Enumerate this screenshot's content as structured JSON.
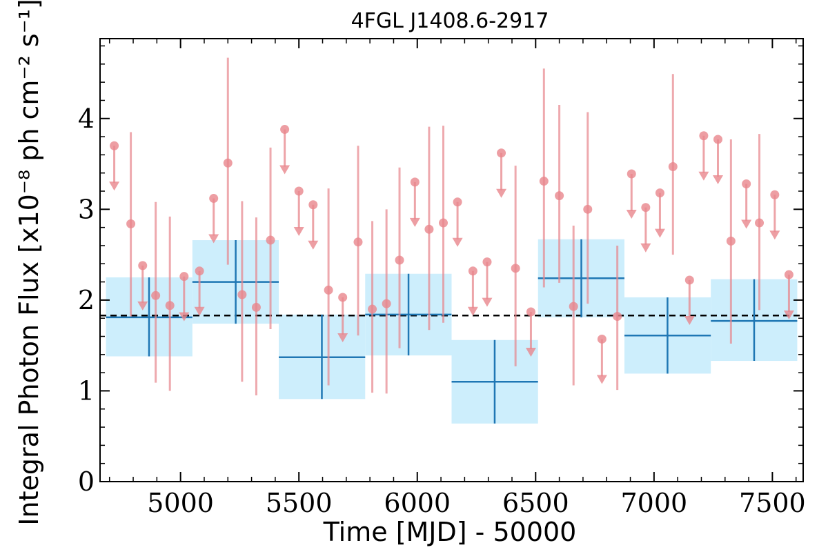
{
  "chart_data": {
    "type": "scatter",
    "title": "4FGL J1408.6-2917",
    "xlabel": "Time [MJD] - 50000",
    "ylabel": "Integral Photon Flux [x10⁻⁸ ph cm⁻² s⁻¹]",
    "xlim": [
      4660,
      7630
    ],
    "ylim": [
      0,
      4.88
    ],
    "x_ticks": [
      5000,
      5500,
      6000,
      6500,
      7000,
      7500
    ],
    "y_ticks": [
      0,
      1,
      2,
      3,
      4
    ],
    "x_tick_labels": [
      "5000",
      "5500",
      "6000",
      "6500",
      "7000",
      "7500"
    ],
    "y_tick_labels": [
      "0",
      "1",
      "2",
      "3",
      "4"
    ],
    "reference_line": {
      "y": 1.83,
      "style": "dashed"
    },
    "colors": {
      "short_bins": "#e8868c",
      "long_bins": "#1f77b4",
      "long_band": "#cdeefc",
      "reference": "#000000"
    },
    "series": [
      {
        "marker": "circle",
        "points": [
          {
            "x": 4790,
            "y": 2.84,
            "ylo": 1.82,
            "yhi": 3.85
          },
          {
            "x": 4895,
            "y": 2.05,
            "ylo": 1.09,
            "yhi": 3.08
          },
          {
            "x": 4955,
            "y": 1.94,
            "ylo": 1.0,
            "yhi": 2.92
          },
          {
            "x": 5200,
            "y": 3.51,
            "ylo": 2.39,
            "yhi": 4.67
          },
          {
            "x": 5260,
            "y": 2.06,
            "ylo": 1.1,
            "yhi": 3.09
          },
          {
            "x": 5320,
            "y": 1.92,
            "ylo": 0.95,
            "yhi": 2.91
          },
          {
            "x": 5380,
            "y": 2.66,
            "ylo": 1.68,
            "yhi": 3.68
          },
          {
            "x": 5625,
            "y": 2.11,
            "ylo": 1.06,
            "yhi": 3.23
          },
          {
            "x": 5750,
            "y": 2.64,
            "ylo": 1.61,
            "yhi": 3.7
          },
          {
            "x": 5810,
            "y": 1.9,
            "ylo": 0.98,
            "yhi": 2.87
          },
          {
            "x": 5870,
            "y": 1.96,
            "ylo": 0.97,
            "yhi": 3.0
          },
          {
            "x": 5925,
            "y": 2.44,
            "ylo": 1.47,
            "yhi": 3.46
          },
          {
            "x": 6050,
            "y": 2.78,
            "ylo": 1.67,
            "yhi": 3.91
          },
          {
            "x": 6110,
            "y": 2.85,
            "ylo": 1.75,
            "yhi": 3.92
          },
          {
            "x": 6415,
            "y": 2.35,
            "ylo": 1.27,
            "yhi": 3.48
          },
          {
            "x": 6535,
            "y": 3.31,
            "ylo": 2.14,
            "yhi": 4.55
          },
          {
            "x": 6600,
            "y": 3.15,
            "ylo": 2.19,
            "yhi": 4.15
          },
          {
            "x": 6660,
            "y": 1.93,
            "ylo": 1.06,
            "yhi": 2.82
          },
          {
            "x": 6720,
            "y": 3.0,
            "ylo": 1.96,
            "yhi": 4.07
          },
          {
            "x": 6845,
            "y": 1.82,
            "ylo": 1.01,
            "yhi": 2.6
          },
          {
            "x": 7080,
            "y": 3.47,
            "ylo": 2.5,
            "yhi": 4.49
          },
          {
            "x": 7325,
            "y": 2.65,
            "ylo": 1.52,
            "yhi": 3.77
          },
          {
            "x": 7445,
            "y": 2.85,
            "ylo": 1.89,
            "yhi": 3.83
          }
        ]
      },
      {
        "marker": "upper-limit",
        "points": [
          {
            "x": 4720,
            "y": 3.7
          },
          {
            "x": 4840,
            "y": 2.38
          },
          {
            "x": 5015,
            "y": 2.26
          },
          {
            "x": 5080,
            "y": 2.32
          },
          {
            "x": 5140,
            "y": 3.12
          },
          {
            "x": 5440,
            "y": 3.88
          },
          {
            "x": 5500,
            "y": 3.2
          },
          {
            "x": 5560,
            "y": 3.05
          },
          {
            "x": 5685,
            "y": 2.03
          },
          {
            "x": 5990,
            "y": 3.3
          },
          {
            "x": 6170,
            "y": 3.08
          },
          {
            "x": 6235,
            "y": 2.32
          },
          {
            "x": 6295,
            "y": 2.42
          },
          {
            "x": 6355,
            "y": 3.62
          },
          {
            "x": 6480,
            "y": 1.87
          },
          {
            "x": 6780,
            "y": 1.57
          },
          {
            "x": 6905,
            "y": 3.39
          },
          {
            "x": 6965,
            "y": 3.02
          },
          {
            "x": 7025,
            "y": 3.18
          },
          {
            "x": 7150,
            "y": 2.22
          },
          {
            "x": 7210,
            "y": 3.81
          },
          {
            "x": 7270,
            "y": 3.77
          },
          {
            "x": 7390,
            "y": 3.28
          },
          {
            "x": 7510,
            "y": 3.16
          },
          {
            "x": 7570,
            "y": 2.28
          }
        ]
      },
      {
        "marker": "binned-cross",
        "points": [
          {
            "x": 4867,
            "xlo": 4685,
            "xhi": 5050,
            "y": 1.81,
            "ylo": 1.38,
            "yhi": 2.25
          },
          {
            "x": 5233,
            "xlo": 5050,
            "xhi": 5415,
            "y": 2.2,
            "ylo": 1.74,
            "yhi": 2.66
          },
          {
            "x": 5597,
            "xlo": 5415,
            "xhi": 5780,
            "y": 1.37,
            "ylo": 0.91,
            "yhi": 1.84
          },
          {
            "x": 5963,
            "xlo": 5780,
            "xhi": 6145,
            "y": 1.84,
            "ylo": 1.39,
            "yhi": 2.29
          },
          {
            "x": 6327,
            "xlo": 6145,
            "xhi": 6510,
            "y": 1.1,
            "ylo": 0.64,
            "yhi": 1.56
          },
          {
            "x": 6693,
            "xlo": 6510,
            "xhi": 6875,
            "y": 2.24,
            "ylo": 1.81,
            "yhi": 2.67
          },
          {
            "x": 7057,
            "xlo": 6875,
            "xhi": 7240,
            "y": 1.61,
            "ylo": 1.19,
            "yhi": 2.03
          },
          {
            "x": 7423,
            "xlo": 7240,
            "xhi": 7605,
            "y": 1.77,
            "ylo": 1.33,
            "yhi": 2.23
          }
        ]
      }
    ]
  }
}
